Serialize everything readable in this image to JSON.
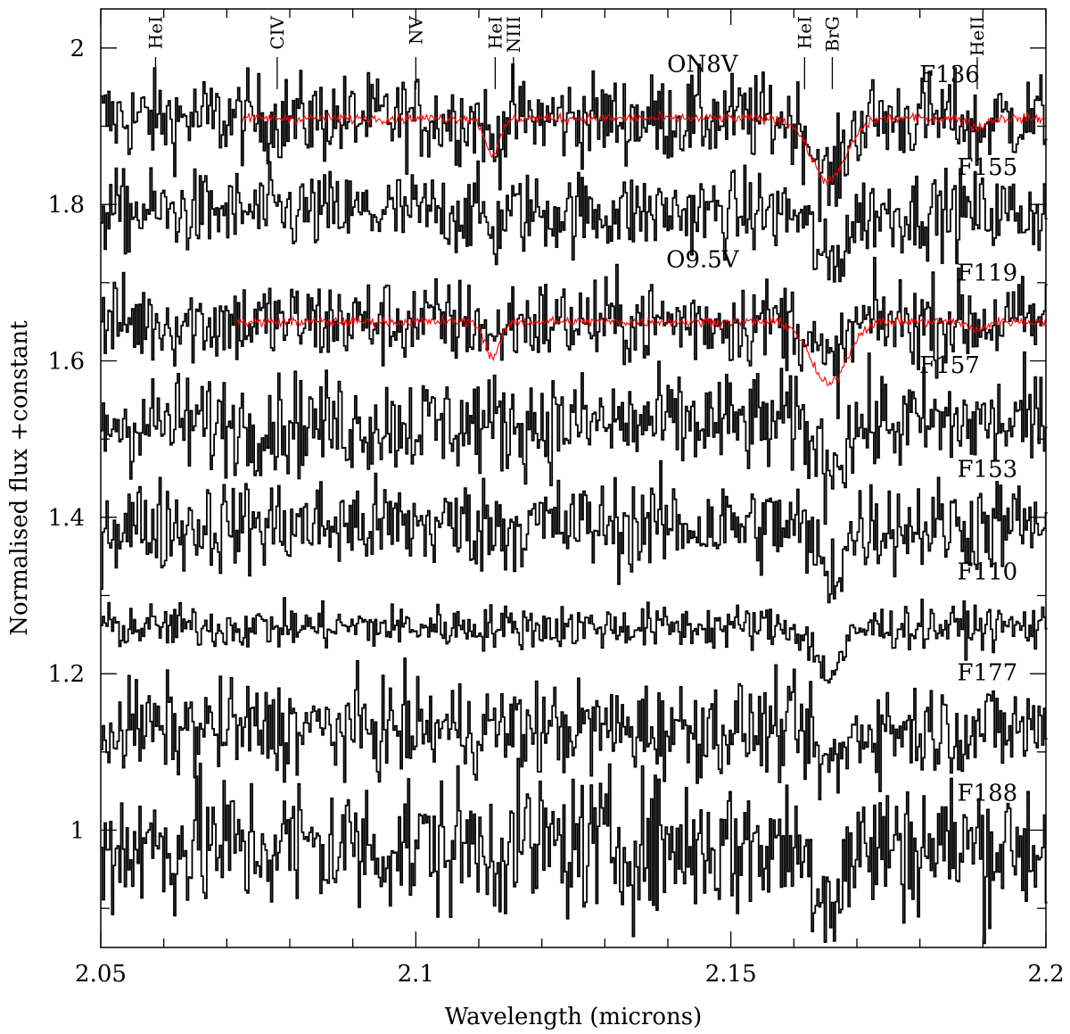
{
  "chart_data": {
    "type": "line",
    "xlabel": "Wavelength (microns)",
    "ylabel": "Normalised flux +constant",
    "xlim": [
      2.05,
      2.2
    ],
    "ylim": [
      0.85,
      2.05
    ],
    "xticks": [
      {
        "value": 2.05,
        "label": "2.05"
      },
      {
        "value": 2.1,
        "label": "2.1"
      },
      {
        "value": 2.15,
        "label": "2.15"
      },
      {
        "value": 2.2,
        "label": "2.2"
      }
    ],
    "yticks": [
      {
        "value": 1.0,
        "label": "1"
      },
      {
        "value": 1.2,
        "label": "1.2"
      },
      {
        "value": 1.4,
        "label": "1.4"
      },
      {
        "value": 1.6,
        "label": "1.6"
      },
      {
        "value": 1.8,
        "label": "1.8"
      },
      {
        "value": 2.0,
        "label": "2"
      }
    ],
    "spectral_lines": [
      {
        "label": "HeI",
        "wavelength": 2.0587
      },
      {
        "label": "CIV",
        "wavelength": 2.078
      },
      {
        "label": "NV",
        "wavelength": 2.1
      },
      {
        "label": "HeI",
        "wavelength": 2.1126
      },
      {
        "label": "NIII",
        "wavelength": 2.1155
      },
      {
        "label": "HeI",
        "wavelength": 2.1617
      },
      {
        "label": "BrG",
        "wavelength": 2.1661
      },
      {
        "label": "HeII",
        "wavelength": 2.1891
      }
    ],
    "series": [
      {
        "name": "F136",
        "offset": 1.91,
        "noise": 0.028,
        "color": "#000000"
      },
      {
        "name": "F155",
        "offset": 1.79,
        "noise": 0.026,
        "color": "#000000"
      },
      {
        "name": "F119",
        "offset": 1.65,
        "noise": 0.028,
        "color": "#000000"
      },
      {
        "name": "F157",
        "offset": 1.52,
        "noise": 0.032,
        "color": "#000000"
      },
      {
        "name": "F153",
        "offset": 1.39,
        "noise": 0.03,
        "color": "#000000"
      },
      {
        "name": "F110",
        "offset": 1.26,
        "noise": 0.014,
        "color": "#000000"
      },
      {
        "name": "F177",
        "offset": 1.13,
        "noise": 0.03,
        "color": "#000000"
      },
      {
        "name": "F188",
        "offset": 0.98,
        "noise": 0.045,
        "color": "#000000"
      }
    ],
    "templates": [
      {
        "name": "ON8V",
        "offset": 1.91,
        "x_start": 2.0725,
        "color": "#ff0000"
      },
      {
        "name": "O9.5V",
        "offset": 1.65,
        "x_start": 2.0715,
        "color": "#ff0000"
      }
    ]
  }
}
